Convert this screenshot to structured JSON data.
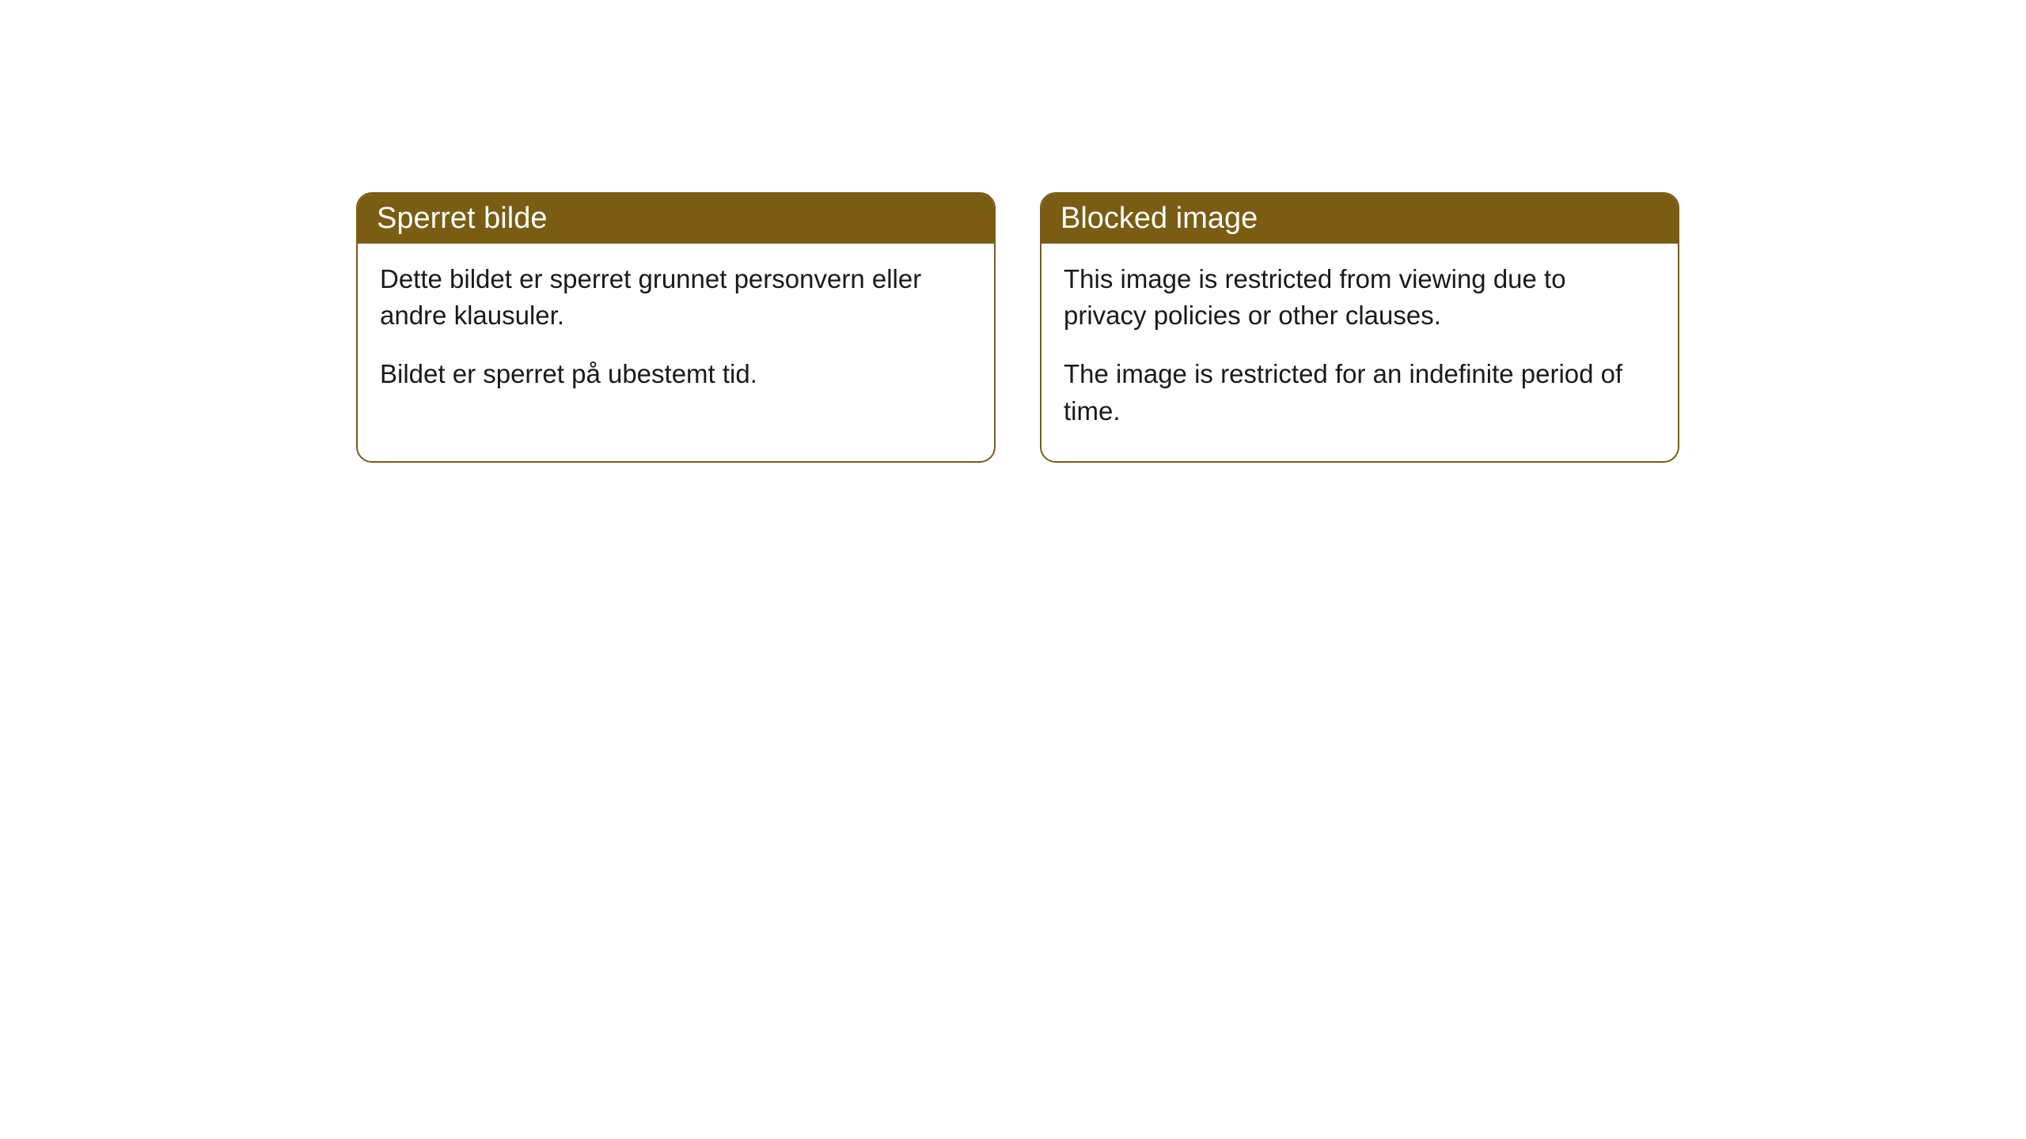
{
  "cards": [
    {
      "title": "Sperret bilde",
      "paragraph1": "Dette bildet er sperret grunnet personvern eller andre klausuler.",
      "paragraph2": "Bildet er sperret på ubestemt tid."
    },
    {
      "title": "Blocked image",
      "paragraph1": "This image is restricted from viewing due to privacy policies or other clauses.",
      "paragraph2": "The image is restricted for an indefinite period of time."
    }
  ],
  "styling": {
    "accent_color": "#7a5c13",
    "background_color": "#ffffff",
    "text_color": "#1a1a1a",
    "header_text_color": "#ffffff",
    "border_radius": 20,
    "title_fontsize": 38,
    "body_fontsize": 33
  }
}
